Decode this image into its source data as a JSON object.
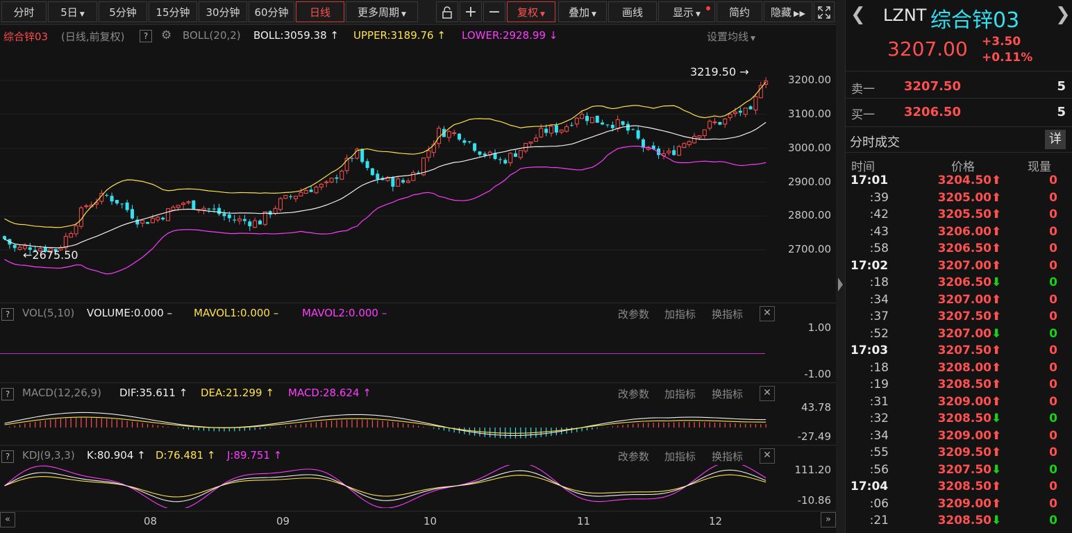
{
  "toolbar": {
    "periods": [
      "分时",
      "5日",
      "5分钟",
      "15分钟",
      "30分钟",
      "60分钟",
      "日线",
      "更多周期"
    ],
    "active_period": "日线",
    "fuquan_label": "复权",
    "overlay_label": "叠加",
    "draw_label": "画线",
    "display_label": "显示",
    "simple_label": "简约",
    "hide_label": "隐藏"
  },
  "main_header": {
    "name": "综合锌03",
    "mode": "(日线,前复权)",
    "indicator": "BOLL(20,2)",
    "boll": "BOLL:3059.38",
    "upper": "UPPER:3189.76",
    "lower": "LOWER:2928.99",
    "set_ma_label": "设置均线",
    "high_marker": "3219.50",
    "low_marker": "2675.50"
  },
  "price_axis": [
    "3200.00",
    "3100.00",
    "3000.00",
    "2900.00",
    "2800.00",
    "2700.00"
  ],
  "vol_panel": {
    "indicator": "VOL(5,10)",
    "volume": "VOLUME:0.000",
    "mavol1": "MAVOL1:0.000",
    "mavol2": "MAVOL2:0.000",
    "axis_top": "1.00",
    "axis_bottom": "-1.00"
  },
  "macd_panel": {
    "indicator": "MACD(12,26,9)",
    "dif": "DIF:35.611",
    "dea": "DEA:21.299",
    "macd": "MACD:28.624",
    "axis_top": "43.78",
    "axis_bottom": "-27.49"
  },
  "kdj_panel": {
    "indicator": "KDJ(9,3,3)",
    "k": "K:80.904",
    "d": "D:76.481",
    "j": "J:89.751",
    "axis_top": "111.20",
    "axis_bottom": "-10.86"
  },
  "panel_actions": {
    "change_params": "改参数",
    "add_indicator": "加指标",
    "switch_indicator": "换指标"
  },
  "x_axis": [
    "08",
    "09",
    "10",
    "11",
    "12"
  ],
  "quote": {
    "code": "LZNT",
    "name": "综合锌03",
    "price": "3207.00",
    "change": "+3.50",
    "change_pct": "+0.11%",
    "sell1_label": "卖一",
    "sell1_price": "3207.50",
    "sell1_vol": "5",
    "buy1_label": "买一",
    "buy1_price": "3206.50",
    "buy1_vol": "5"
  },
  "ticks": {
    "title": "分时成交",
    "detail_label": "详",
    "col_time": "时间",
    "col_price": "价格",
    "col_vol": "现量",
    "rows": [
      {
        "time": "17:01",
        "price": "3204.50",
        "dir": "up",
        "vol": "0",
        "bold_time": true
      },
      {
        "time": ":39",
        "price": "3205.00",
        "dir": "up",
        "vol": "0"
      },
      {
        "time": ":42",
        "price": "3205.50",
        "dir": "up",
        "vol": "0"
      },
      {
        "time": ":43",
        "price": "3206.00",
        "dir": "up",
        "vol": "0"
      },
      {
        "time": ":58",
        "price": "3206.50",
        "dir": "up",
        "vol": "0"
      },
      {
        "time": "17:02",
        "price": "3207.00",
        "dir": "up",
        "vol": "0",
        "bold_time": true
      },
      {
        "time": ":18",
        "price": "3206.50",
        "dir": "down",
        "vol": "0"
      },
      {
        "time": ":34",
        "price": "3207.00",
        "dir": "up",
        "vol": "0"
      },
      {
        "time": ":37",
        "price": "3207.50",
        "dir": "up",
        "vol": "0"
      },
      {
        "time": ":52",
        "price": "3207.00",
        "dir": "down",
        "vol": "0"
      },
      {
        "time": "17:03",
        "price": "3207.50",
        "dir": "up",
        "vol": "0",
        "bold_time": true
      },
      {
        "time": ":18",
        "price": "3208.00",
        "dir": "up",
        "vol": "0"
      },
      {
        "time": ":19",
        "price": "3208.50",
        "dir": "up",
        "vol": "0"
      },
      {
        "time": ":31",
        "price": "3209.00",
        "dir": "up",
        "vol": "0"
      },
      {
        "time": ":32",
        "price": "3208.50",
        "dir": "down",
        "vol": "0"
      },
      {
        "time": ":34",
        "price": "3209.00",
        "dir": "up",
        "vol": "0"
      },
      {
        "time": ":55",
        "price": "3209.50",
        "dir": "up",
        "vol": "0"
      },
      {
        "time": ":56",
        "price": "3207.50",
        "dir": "down",
        "vol": "0"
      },
      {
        "time": "17:04",
        "price": "3208.50",
        "dir": "up",
        "vol": "0",
        "bold_time": true
      },
      {
        "time": ":06",
        "price": "3209.00",
        "dir": "up",
        "vol": "0"
      },
      {
        "time": ":21",
        "price": "3208.50",
        "dir": "down",
        "vol": "0"
      }
    ]
  },
  "colors": {
    "up": "#ff5050",
    "down": "#19d019",
    "bear_candle": "#33e0f0",
    "boll_mid": "#f0f0f0",
    "boll_upper": "#ffe14a",
    "boll_lower": "#ff3bff",
    "accent": "#ff5050"
  }
}
